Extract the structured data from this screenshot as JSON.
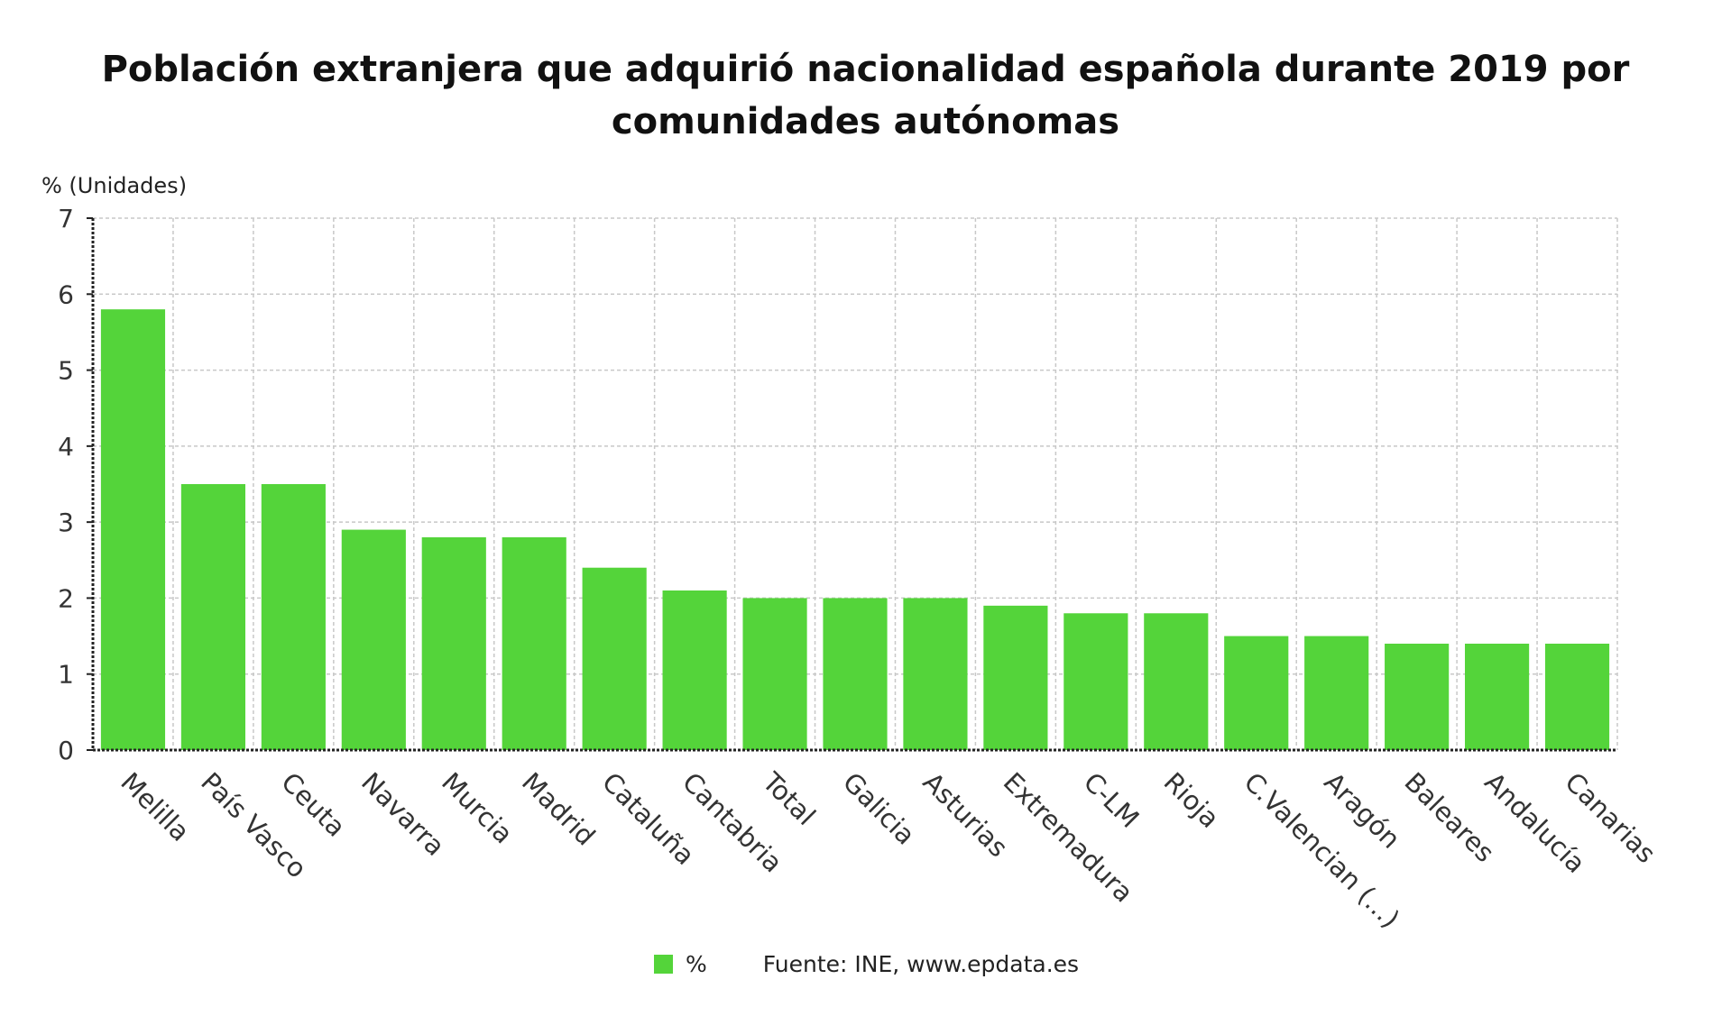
{
  "chart_data": {
    "type": "bar",
    "title": "Población extranjera que adquirió nacionalidad española durante 2019 por comunidades autónomas",
    "title_lines": [
      "Población extranjera que adquirió nacionalidad española durante 2019 por",
      "comunidades autónomas"
    ],
    "ylabel": "% (Unidades)",
    "xlabel": "",
    "ylim": [
      0,
      7
    ],
    "yticks": [
      0,
      1,
      2,
      3,
      4,
      5,
      6,
      7
    ],
    "grid": true,
    "legend_position": "bottom",
    "categories": [
      "Melilla",
      "País Vasco",
      "Ceuta",
      "Navarra",
      "Murcia",
      "Madrid",
      "Cataluña",
      "Cantabria",
      "Total",
      "Galicia",
      "Asturias",
      "Extremadura",
      "C-LM",
      "Rioja",
      "C.Valencian (...)",
      "Aragón",
      "Baleares",
      "Andalucía",
      "Canarias"
    ],
    "series": [
      {
        "name": "%",
        "color": "#54d43a",
        "values": [
          5.8,
          3.5,
          3.5,
          2.9,
          2.8,
          2.8,
          2.4,
          2.1,
          2.0,
          2.0,
          2.0,
          1.9,
          1.8,
          1.8,
          1.5,
          1.5,
          1.4,
          1.4,
          1.4
        ]
      }
    ]
  },
  "legend": {
    "series_label": "%",
    "source": "Fuente: INE, www.epdata.es"
  },
  "colors": {
    "bar": "#54d43a",
    "grid": "#c8c8c8",
    "axis": "#222222"
  }
}
